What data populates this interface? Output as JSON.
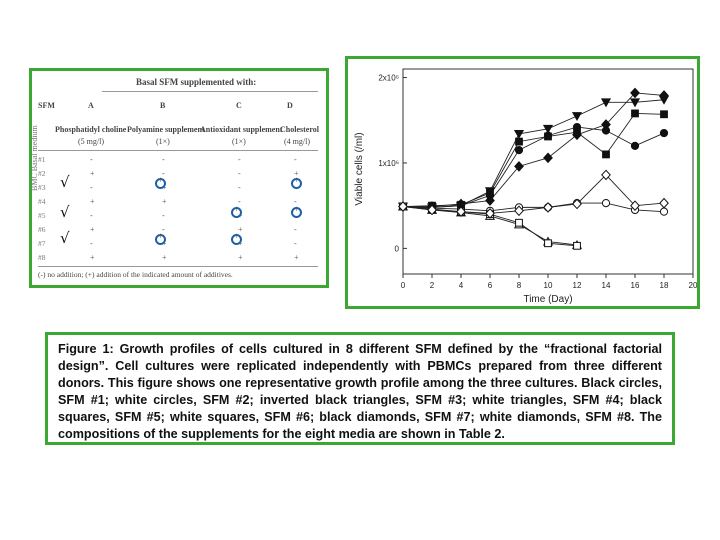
{
  "table": {
    "side_label": "BMC Basal medium",
    "header_title": "Basal SFM supplemented with:",
    "columns": [
      {
        "key": "SFM",
        "letter": "",
        "name": "",
        "amount": ""
      },
      {
        "key": "A",
        "letter": "A",
        "name": "Phosphatidyl choline",
        "amount": "(5 mg/l)"
      },
      {
        "key": "B",
        "letter": "B",
        "name": "Polyamine supplement",
        "amount": "(1×)"
      },
      {
        "key": "C",
        "letter": "C",
        "name": "Antioxidant supplement",
        "amount": "(1×)"
      },
      {
        "key": "D",
        "letter": "D",
        "name": "Cholesterol",
        "amount": "(4 mg/l)"
      }
    ],
    "sfm_header": "SFM",
    "rows": [
      {
        "label": "#1",
        "cells": [
          "-",
          "-",
          "-",
          "-"
        ]
      },
      {
        "label": "#2",
        "cells": [
          "+",
          "-",
          "-",
          "+"
        ]
      },
      {
        "label": "#3",
        "cells": [
          "-",
          "+",
          "-",
          "+"
        ]
      },
      {
        "label": "#4",
        "cells": [
          "+",
          "+",
          "-",
          "-"
        ]
      },
      {
        "label": "#5",
        "cells": [
          "-",
          "-",
          "+",
          "+"
        ]
      },
      {
        "label": "#6",
        "cells": [
          "+",
          "-",
          "+",
          "-"
        ]
      },
      {
        "label": "#7",
        "cells": [
          "-",
          "+",
          "+",
          "-"
        ]
      },
      {
        "label": "#8",
        "cells": [
          "+",
          "+",
          "+",
          "+"
        ]
      }
    ],
    "footnote": "(-) no addition; (+) addition of the indicated amount of additives.",
    "check_mark": "√"
  },
  "caption": "Figure 1: Growth profiles of cells cultured in 8 different SFM defined by the “fractional factorial design”. Cell cultures were replicated independently with PBMCs prepared from three different donors. This figure shows one representative growth profile among the three cultures. Black circles, SFM #1; white circles, SFM #2; inverted black triangles, SFM #3; white triangles, SFM #4; black squares, SFM #5; white squares, SFM #6; black diamonds, SFM #7; white diamonds, SFM #8. The compositions of the supplements for the eight media are shown in Table 2.",
  "colors": {
    "border": "#3aa832",
    "highlight_ring": "#1b5fa8"
  },
  "chart_data": {
    "type": "line",
    "xlabel": "Time (Day)",
    "ylabel": "Viable cells (/ml)",
    "xlim": [
      0,
      20
    ],
    "ylim": [
      0,
      2000000
    ],
    "xticks": [
      "0",
      "2",
      "4",
      "6",
      "8",
      "10",
      "12",
      "14",
      "16",
      "18",
      "20"
    ],
    "yticks": [
      {
        "label": "0",
        "value": 0
      },
      {
        "label": "1x10⁶",
        "value": 1000000
      },
      {
        "label": "2x10⁶",
        "value": 2000000
      }
    ],
    "x": [
      0,
      2,
      4,
      6,
      8,
      10,
      12,
      14,
      16,
      18
    ],
    "series": [
      {
        "marker": "circle",
        "fill": "black",
        "values": [
          490000,
          480000,
          500000,
          620000,
          1150000,
          1320000,
          1420000,
          1380000,
          1200000,
          1350000
        ]
      },
      {
        "marker": "circle",
        "fill": "white",
        "values": [
          490000,
          470000,
          460000,
          440000,
          480000,
          480000,
          530000,
          530000,
          450000,
          430000
        ]
      },
      {
        "marker": "triangle-down",
        "fill": "black",
        "values": [
          490000,
          480000,
          500000,
          670000,
          1340000,
          1400000,
          1550000,
          1710000,
          1710000,
          1740000
        ]
      },
      {
        "marker": "triangle-up",
        "fill": "white",
        "values": [
          490000,
          450000,
          420000,
          380000,
          280000,
          80000,
          40000,
          null,
          null,
          null
        ]
      },
      {
        "marker": "square",
        "fill": "black",
        "values": [
          490000,
          500000,
          510000,
          650000,
          1250000,
          1310000,
          1360000,
          1100000,
          1580000,
          1570000
        ]
      },
      {
        "marker": "square",
        "fill": "white",
        "values": [
          490000,
          460000,
          430000,
          400000,
          300000,
          60000,
          30000,
          null,
          null,
          null
        ]
      },
      {
        "marker": "diamond",
        "fill": "black",
        "values": [
          490000,
          490000,
          520000,
          560000,
          960000,
          1060000,
          1330000,
          1450000,
          1820000,
          1790000
        ]
      },
      {
        "marker": "diamond",
        "fill": "white",
        "values": [
          490000,
          450000,
          430000,
          410000,
          440000,
          480000,
          520000,
          860000,
          500000,
          530000
        ]
      }
    ]
  }
}
